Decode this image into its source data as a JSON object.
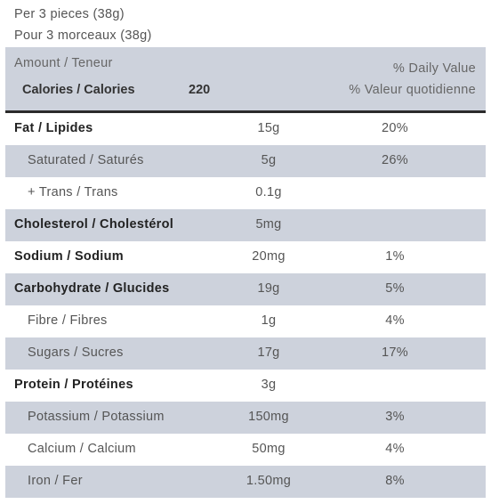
{
  "serving": {
    "en": "Per 3 pieces (38g)",
    "fr": "Pour 3 morceaux (38g)"
  },
  "header": {
    "amount_label": "Amount / Teneur",
    "calories_label": "Calories / Calories",
    "calories_value": "220",
    "dv_en": "% Daily Value",
    "dv_fr": "% Valeur quotidienne"
  },
  "rows": [
    {
      "name": "Fat / Lipides",
      "amount": "15g",
      "dv": "20%"
    },
    {
      "name": "Saturated / Saturés",
      "amount": "5g",
      "dv": "26%"
    },
    {
      "name": "+ Trans / Trans",
      "amount": "0.1g",
      "dv": ""
    },
    {
      "name": "Cholesterol / Cholestérol",
      "amount": "5mg",
      "dv": ""
    },
    {
      "name": "Sodium / Sodium",
      "amount": "20mg",
      "dv": "1%"
    },
    {
      "name": "Carbohydrate / Glucides",
      "amount": "19g",
      "dv": "5%"
    },
    {
      "name": "Fibre / Fibres",
      "amount": "1g",
      "dv": "4%"
    },
    {
      "name": "Sugars / Sucres",
      "amount": "17g",
      "dv": "17%"
    },
    {
      "name": "Protein / Protéines",
      "amount": "3g",
      "dv": ""
    },
    {
      "name": "Potassium / Potassium",
      "amount": "150mg",
      "dv": "3%"
    },
    {
      "name": "Calcium / Calcium",
      "amount": "50mg",
      "dv": "4%"
    },
    {
      "name": "Iron / Fer",
      "amount": "1.50mg",
      "dv": "8%"
    }
  ],
  "colors": {
    "shade": "#cdd2dc",
    "rule": "#2b2b2b"
  }
}
